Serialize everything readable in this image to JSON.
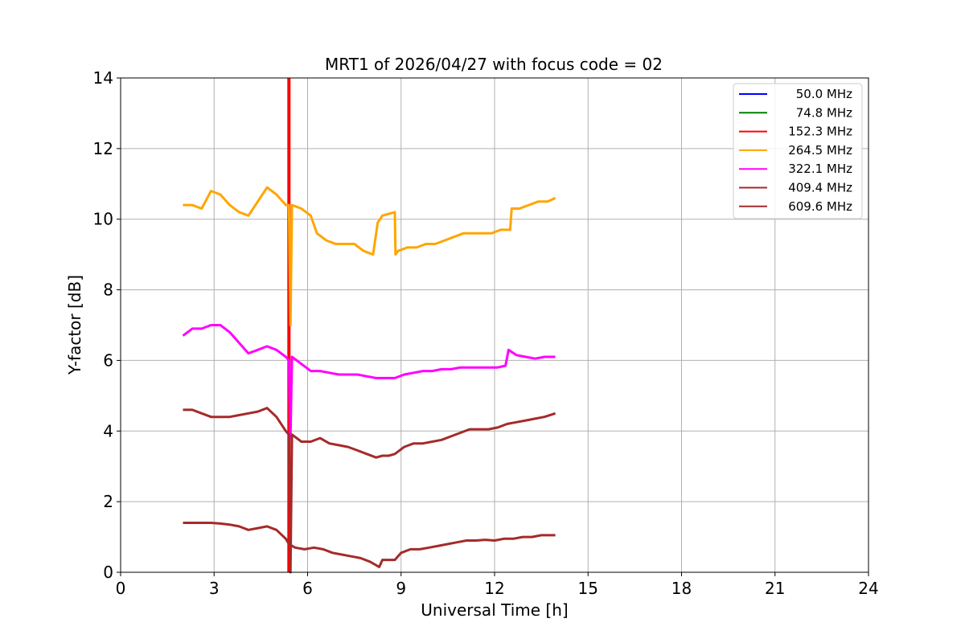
{
  "chart_data": {
    "type": "line",
    "title": "MRT1 of 2026/04/27 with focus code = 02",
    "xlabel": "Universal Time [h]",
    "ylabel": "Y-factor [dB]",
    "xlim": [
      0,
      24
    ],
    "ylim": [
      0,
      14
    ],
    "xticks": [
      "0",
      "3",
      "6",
      "9",
      "12",
      "15",
      "18",
      "21",
      "24"
    ],
    "yticks": [
      "0",
      "2",
      "4",
      "6",
      "8",
      "10",
      "12",
      "14"
    ],
    "grid": true,
    "legend_position": "top-right",
    "series": [
      {
        "name": "50.0 MHz",
        "color": "#0000ff",
        "x": [],
        "y": []
      },
      {
        "name": "74.8 MHz",
        "color": "#008000",
        "x": [],
        "y": []
      },
      {
        "name": "152.3 MHz",
        "color": "#ff0000",
        "x": [
          5.4,
          5.4
        ],
        "y": [
          0,
          14
        ]
      },
      {
        "name": "264.5 MHz",
        "color": "#ffa500",
        "x": [
          2.0,
          2.3,
          2.6,
          2.9,
          3.2,
          3.5,
          3.8,
          4.1,
          4.4,
          4.7,
          5.0,
          5.3,
          5.4,
          5.45,
          5.5,
          5.8,
          6.1,
          6.3,
          6.6,
          6.9,
          7.2,
          7.5,
          7.8,
          8.1,
          8.25,
          8.4,
          8.8,
          8.82,
          8.9,
          9.2,
          9.5,
          9.8,
          10.1,
          10.4,
          10.7,
          11.0,
          11.3,
          11.6,
          11.9,
          12.2,
          12.5,
          12.55,
          12.8,
          13.1,
          13.4,
          13.7,
          13.95
        ],
        "y": [
          10.4,
          10.4,
          10.3,
          10.8,
          10.7,
          10.4,
          10.2,
          10.1,
          10.5,
          10.9,
          10.7,
          10.4,
          10.4,
          7.0,
          10.4,
          10.3,
          10.1,
          9.6,
          9.4,
          9.3,
          9.3,
          9.3,
          9.1,
          9.0,
          9.9,
          10.1,
          10.2,
          9.0,
          9.1,
          9.2,
          9.2,
          9.3,
          9.3,
          9.4,
          9.5,
          9.6,
          9.6,
          9.6,
          9.6,
          9.7,
          9.7,
          10.3,
          10.3,
          10.4,
          10.5,
          10.5,
          10.6
        ]
      },
      {
        "name": "322.1 MHz",
        "color": "#ff00ff",
        "x": [
          2.0,
          2.3,
          2.6,
          2.9,
          3.2,
          3.5,
          3.8,
          4.1,
          4.4,
          4.7,
          5.0,
          5.3,
          5.4,
          5.45,
          5.5,
          5.8,
          6.1,
          6.4,
          6.7,
          7.0,
          7.3,
          7.6,
          7.9,
          8.2,
          8.5,
          8.8,
          9.1,
          9.4,
          9.7,
          10.0,
          10.3,
          10.6,
          10.9,
          11.2,
          11.5,
          11.8,
          12.1,
          12.35,
          12.45,
          12.7,
          13.0,
          13.3,
          13.6,
          13.95
        ],
        "y": [
          6.7,
          6.9,
          6.9,
          7.0,
          7.0,
          6.8,
          6.5,
          6.2,
          6.3,
          6.4,
          6.3,
          6.1,
          6.0,
          3.8,
          6.1,
          5.9,
          5.7,
          5.7,
          5.65,
          5.6,
          5.6,
          5.6,
          5.55,
          5.5,
          5.5,
          5.5,
          5.6,
          5.65,
          5.7,
          5.7,
          5.75,
          5.75,
          5.8,
          5.8,
          5.8,
          5.8,
          5.8,
          5.85,
          6.3,
          6.15,
          6.1,
          6.05,
          6.1,
          6.1
        ]
      },
      {
        "name": "409.4 MHz",
        "color": "#a52a2a",
        "x": [
          2.0,
          2.3,
          2.6,
          2.9,
          3.2,
          3.5,
          3.8,
          4.1,
          4.4,
          4.7,
          5.0,
          5.3,
          5.4,
          5.45,
          5.5,
          5.8,
          6.1,
          6.4,
          6.7,
          7.0,
          7.3,
          7.6,
          7.9,
          8.2,
          8.4,
          8.6,
          8.8,
          9.1,
          9.4,
          9.7,
          10.0,
          10.3,
          10.6,
          10.9,
          11.2,
          11.5,
          11.8,
          12.1,
          12.4,
          12.7,
          13.0,
          13.3,
          13.6,
          13.95
        ],
        "y": [
          4.6,
          4.6,
          4.5,
          4.4,
          4.4,
          4.4,
          4.45,
          4.5,
          4.55,
          4.65,
          4.4,
          4.0,
          3.9,
          0.0,
          3.9,
          3.7,
          3.7,
          3.8,
          3.65,
          3.6,
          3.55,
          3.45,
          3.35,
          3.25,
          3.3,
          3.3,
          3.35,
          3.55,
          3.65,
          3.65,
          3.7,
          3.75,
          3.85,
          3.95,
          4.05,
          4.05,
          4.05,
          4.1,
          4.2,
          4.25,
          4.3,
          4.35,
          4.4,
          4.5
        ]
      },
      {
        "name": "609.6 MHz",
        "color": "#a52a2a",
        "x": [
          2.0,
          2.3,
          2.6,
          2.9,
          3.2,
          3.5,
          3.8,
          4.1,
          4.4,
          4.7,
          5.0,
          5.3,
          5.4,
          5.6,
          5.9,
          6.2,
          6.5,
          6.8,
          7.1,
          7.4,
          7.7,
          8.0,
          8.3,
          8.4,
          8.8,
          9.0,
          9.3,
          9.6,
          9.9,
          10.2,
          10.5,
          10.8,
          11.1,
          11.4,
          11.7,
          12.0,
          12.3,
          12.6,
          12.9,
          13.2,
          13.5,
          13.95
        ],
        "y": [
          1.4,
          1.4,
          1.4,
          1.4,
          1.38,
          1.35,
          1.3,
          1.2,
          1.25,
          1.3,
          1.2,
          0.95,
          0.8,
          0.7,
          0.65,
          0.7,
          0.65,
          0.55,
          0.5,
          0.45,
          0.4,
          0.3,
          0.15,
          0.35,
          0.35,
          0.55,
          0.65,
          0.65,
          0.7,
          0.75,
          0.8,
          0.85,
          0.9,
          0.9,
          0.92,
          0.9,
          0.95,
          0.95,
          1.0,
          1.0,
          1.05,
          1.05
        ]
      }
    ]
  }
}
